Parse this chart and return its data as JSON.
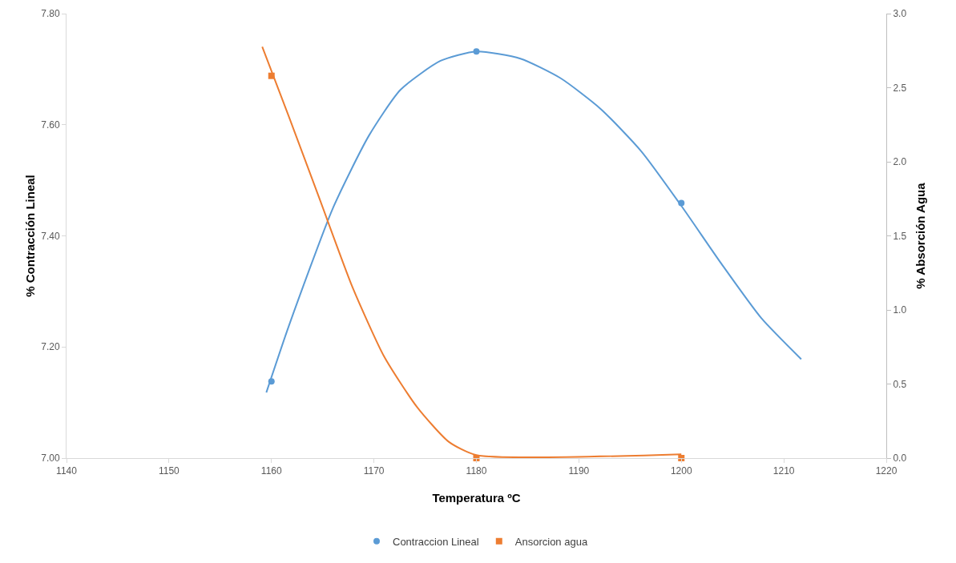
{
  "chart_data": {
    "type": "scatter",
    "xlabel": "Temperatura ºC",
    "ylabel": "% Contracción Lineal",
    "y2label": "% Absorción Agua",
    "xlim": [
      1140,
      1220
    ],
    "xticks": [
      1140,
      1150,
      1160,
      1170,
      1180,
      1190,
      1200,
      1210,
      1220
    ],
    "ylim": [
      7.0,
      7.8
    ],
    "yticks": [
      {
        "value": 7.0,
        "label": "7.00"
      },
      {
        "value": 7.2,
        "label": "7.20"
      },
      {
        "value": 7.4,
        "label": "7.40"
      },
      {
        "value": 7.6,
        "label": "7.60"
      },
      {
        "value": 7.8,
        "label": "7.80"
      }
    ],
    "y2lim": [
      0,
      3
    ],
    "y2ticks": [
      {
        "value": 0,
        "label": "0.0"
      },
      {
        "value": 0.5,
        "label": "0.5"
      },
      {
        "value": 1,
        "label": "1.0"
      },
      {
        "value": 1.5,
        "label": "1.5"
      },
      {
        "value": 2,
        "label": "2.0"
      },
      {
        "value": 2.5,
        "label": "2.5"
      },
      {
        "value": 3,
        "label": "3.0"
      }
    ],
    "grid": false,
    "legend": "bottom",
    "line_style": "solid",
    "series": [
      {
        "name": "Contraccion Lineal",
        "marker": "circle",
        "color": "#5b9bd5",
        "x": [
          1160,
          1180,
          1200
        ],
        "values": [
          7.138,
          7.732,
          7.459
        ]
      },
      {
        "name": "Ansorcion agua",
        "marker": "square",
        "color": "#ed7d31",
        "axis": "y2",
        "x": [
          1160,
          1180,
          1200
        ],
        "values": [
          2.58,
          0,
          0
        ]
      },
      {
        "type": "line",
        "color": "#5b9bd5",
        "x": [
          1159.5,
          1161.7,
          1166.0,
          1169.5,
          1172.6,
          1176.5,
          1180.0,
          1184.3,
          1188.2,
          1192.1,
          1196.1,
          1200.0,
          1203.9,
          1207.8,
          1211.7
        ],
        "values": [
          7.118,
          7.238,
          7.45,
          7.58,
          7.663,
          7.715,
          7.732,
          7.719,
          7.684,
          7.629,
          7.552,
          7.454,
          7.35,
          7.252,
          7.178
        ]
      },
      {
        "type": "line",
        "color": "#ed7d31",
        "axis": "y2",
        "x": [
          1159.1,
          1161.7,
          1164.8,
          1167.9,
          1171.0,
          1174.2,
          1177.3,
          1180.0,
          1200.0
        ],
        "values": [
          2.776,
          2.305,
          1.73,
          1.155,
          0.685,
          0.345,
          0.11,
          0.02,
          0.026
        ]
      }
    ]
  }
}
